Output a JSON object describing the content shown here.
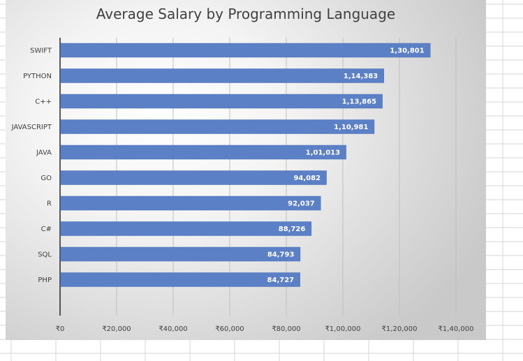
{
  "chart_data": {
    "type": "bar",
    "orientation": "horizontal",
    "title": "Average Salary by Programming Language",
    "xlabel": "",
    "ylabel": "",
    "categories": [
      "SWIFT",
      "PYTHON",
      "C++",
      "JAVASCRIPT",
      "JAVA",
      "GO",
      "R",
      "C#",
      "SQL",
      "PHP"
    ],
    "values": [
      130801,
      114383,
      113865,
      110981,
      101013,
      94082,
      92037,
      88726,
      84793,
      84727
    ],
    "value_labels": [
      "1,30,801",
      "1,14,383",
      "1,13,865",
      "1,10,981",
      "1,01,013",
      "94,082",
      "92,037",
      "88,726",
      "84,793",
      "84,727"
    ],
    "xlim": [
      0,
      140000
    ],
    "xticks": [
      0,
      20000,
      40000,
      60000,
      80000,
      100000,
      120000,
      140000
    ],
    "xtick_labels": [
      "₹0",
      "₹20,000",
      "₹40,000",
      "₹60,000",
      "₹80,000",
      "₹1,00,000",
      "₹1,20,000",
      "₹1,40,000"
    ],
    "grid": "vertical",
    "legend": "none",
    "bar_color": "#5b80c6",
    "bar_edge_color": "#4a6fb5"
  }
}
